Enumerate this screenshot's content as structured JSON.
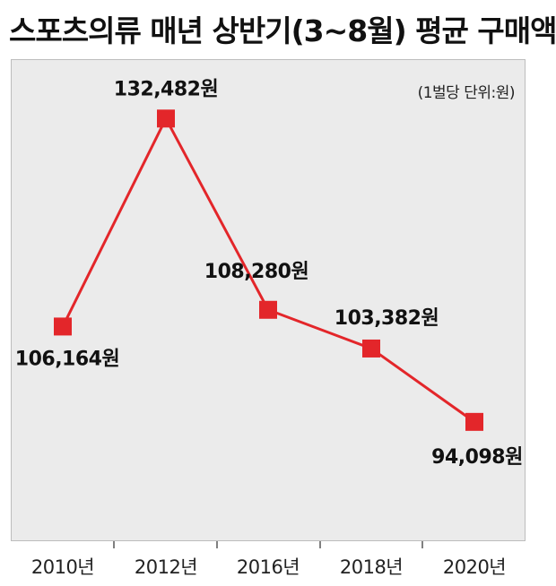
{
  "title": "스포츠의류 매년 상반기(3~8월) 평균 구매액",
  "unit_note": "(1벌당 단위:원)",
  "colors": {
    "line": "#e3262a",
    "marker": "#e3262a",
    "panel": "#ebebeb"
  },
  "chart_data": {
    "type": "line",
    "title": "스포츠의류 매년 상반기(3~8월) 평균 구매액",
    "xlabel": "",
    "ylabel": "",
    "categories": [
      "2010년",
      "2012년",
      "2016년",
      "2018년",
      "2020년"
    ],
    "series": [
      {
        "values": [
          106164,
          132482,
          108280,
          103382,
          94098
        ],
        "labels": [
          "106,164원",
          "132,482원",
          "108,280원",
          "103,382원",
          "94,098원"
        ]
      }
    ],
    "ylim": [
      79000,
      140000
    ],
    "grid": false,
    "legend": "none"
  }
}
